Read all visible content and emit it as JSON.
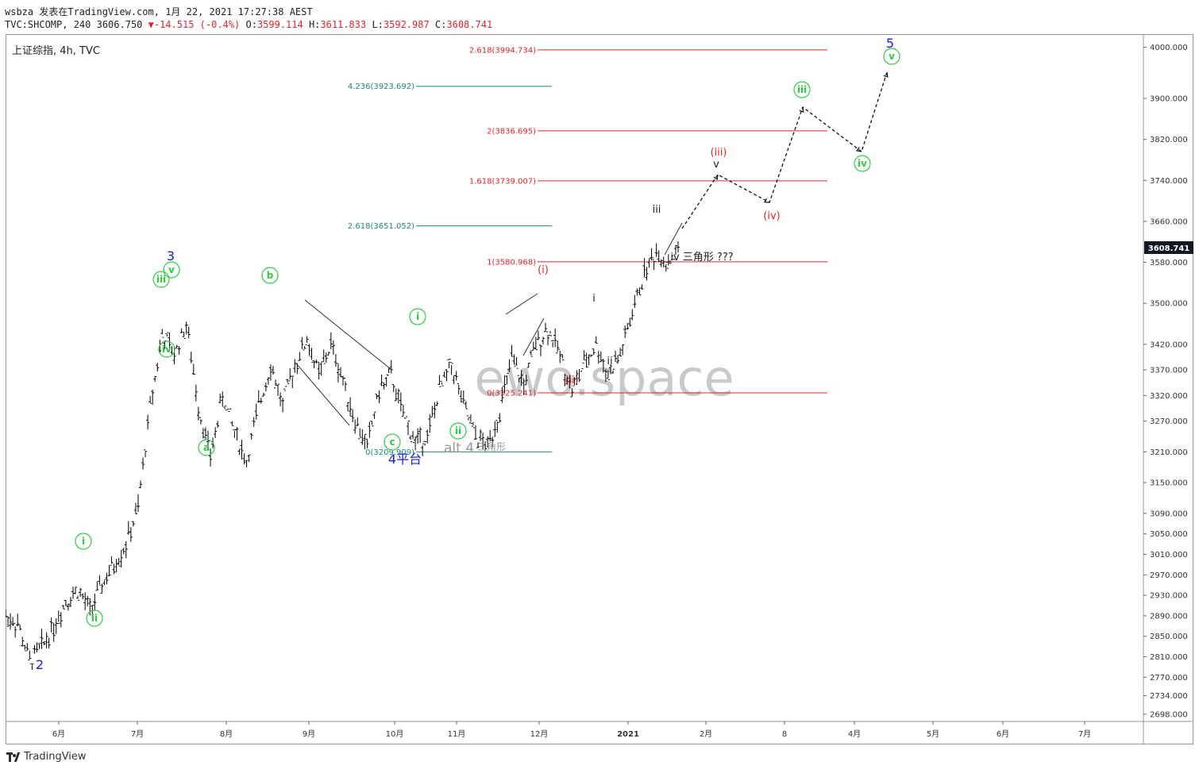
{
  "header": {
    "user": "wsbza",
    "published": "发表在TradingView.com,",
    "datetime": "1月 22, 2021 17:27:38 AEST",
    "symbol_line_prefix": "TVC:SHCOMP, 240 3606.750",
    "change": "-14.515 (-0.4%)",
    "open_label": "O:",
    "open": "3599.114",
    "high_label": "H:",
    "high": "3611.833",
    "low_label": "L:",
    "low": "3592.987",
    "close_label": "C:",
    "close": "3608.741"
  },
  "symbol_label": "上证综指, 4h, TVC",
  "watermark": "ewo.space",
  "footer": {
    "brand": "TradingView"
  },
  "colors": {
    "up": "#000000",
    "fib_red": "#e0252b",
    "fib_teal": "#1b8a7a",
    "green": "#2ecc40",
    "blue": "#1a1adb",
    "last_price_bg": "#131722"
  },
  "chart_data": {
    "type": "candlestick",
    "ylim": [
      2690,
      4010
    ],
    "y_ticks": [
      "4000.000",
      "3900.000",
      "3820.000",
      "3740.000",
      "3660.000",
      "3580.000",
      "3500.000",
      "3420.000",
      "3370.000",
      "3320.000",
      "3270.000",
      "3210.000",
      "3150.000",
      "3090.000",
      "3050.000",
      "3010.000",
      "2970.000",
      "2930.000",
      "2890.000",
      "2850.000",
      "2810.000",
      "2770.000",
      "2734.000",
      "2698.000"
    ],
    "x_ticks": [
      "6月",
      "7月",
      "8月",
      "9月",
      "10月",
      "11月",
      "12月",
      "2021",
      "2月",
      "8",
      "4月",
      "5月",
      "6月",
      "7月"
    ],
    "last_price": "3608.741",
    "price_path": [
      [
        2020.38,
        2890
      ],
      [
        2020.4,
        2875
      ],
      [
        2020.42,
        2800
      ],
      [
        2020.44,
        2830
      ],
      [
        2020.46,
        2870
      ],
      [
        2020.48,
        2920
      ],
      [
        2020.5,
        2940
      ],
      [
        2020.52,
        2900
      ],
      [
        2020.54,
        2950
      ],
      [
        2020.56,
        2990
      ],
      [
        2020.58,
        3030
      ],
      [
        2020.6,
        3100
      ],
      [
        2020.62,
        3300
      ],
      [
        2020.64,
        3440
      ],
      [
        2020.66,
        3400
      ],
      [
        2020.68,
        3460
      ],
      [
        2020.7,
        3300
      ],
      [
        2020.72,
        3200
      ],
      [
        2020.74,
        3320
      ],
      [
        2020.76,
        3250
      ],
      [
        2020.78,
        3190
      ],
      [
        2020.8,
        3300
      ],
      [
        2020.82,
        3380
      ],
      [
        2020.84,
        3300
      ],
      [
        2020.86,
        3380
      ],
      [
        2020.88,
        3430
      ],
      [
        2020.9,
        3360
      ],
      [
        2020.92,
        3420
      ],
      [
        2020.94,
        3350
      ],
      [
        2020.96,
        3270
      ],
      [
        2020.98,
        3220
      ],
      [
        2021.0,
        3330
      ],
      [
        2021.02,
        3360
      ],
      [
        2021.04,
        3280
      ],
      [
        2021.06,
        3230
      ],
      [
        2021.08,
        3240
      ],
      [
        2021.1,
        3330
      ],
      [
        2021.12,
        3380
      ],
      [
        2021.14,
        3300
      ],
      [
        2021.16,
        3240
      ],
      [
        2021.18,
        3220
      ],
      [
        2021.2,
        3290
      ],
      [
        2021.22,
        3390
      ],
      [
        2021.24,
        3340
      ],
      [
        2021.26,
        3420
      ],
      [
        2021.28,
        3450
      ],
      [
        2021.3,
        3400
      ],
      [
        2021.32,
        3330
      ],
      [
        2021.34,
        3380
      ],
      [
        2021.36,
        3420
      ],
      [
        2021.38,
        3360
      ],
      [
        2021.4,
        3400
      ],
      [
        2021.42,
        3480
      ],
      [
        2021.44,
        3560
      ],
      [
        2021.46,
        3600
      ],
      [
        2021.48,
        3580
      ],
      [
        2021.5,
        3608
      ]
    ],
    "fib_levels": [
      {
        "label": "2.618(3994.734)",
        "value": 3994.734,
        "color": "red"
      },
      {
        "label": "4.236(3923.692)",
        "value": 3923.692,
        "color": "teal"
      },
      {
        "label": "2(3836.695)",
        "value": 3836.695,
        "color": "red"
      },
      {
        "label": "1.618(3739.007)",
        "value": 3739.007,
        "color": "red"
      },
      {
        "label": "2.618(3651.052)",
        "value": 3651.052,
        "color": "teal"
      },
      {
        "label": "1(3580.968)",
        "value": 3580.968,
        "color": "red"
      },
      {
        "label": "0(3325.241)",
        "value": 3325.241,
        "color": "red"
      },
      {
        "label": "0(3209.909)",
        "value": 3209.909,
        "color": "teal"
      }
    ],
    "wave_labels": [
      {
        "text": "2",
        "color": "blue"
      },
      {
        "text": "3",
        "color": "blue"
      },
      {
        "text": "4平台",
        "color": "blue"
      },
      {
        "text": "5",
        "color": "blue"
      },
      {
        "text": "i",
        "color": "green"
      },
      {
        "text": "ii",
        "color": "green"
      },
      {
        "text": "iii",
        "color": "green"
      },
      {
        "text": "iv",
        "color": "green"
      },
      {
        "text": "v",
        "color": "green"
      },
      {
        "text": "a",
        "color": "green"
      },
      {
        "text": "b",
        "color": "green"
      },
      {
        "text": "c",
        "color": "green"
      },
      {
        "text": "i",
        "color": "green"
      },
      {
        "text": "ii",
        "color": "green"
      },
      {
        "text": "iii",
        "color": "green"
      },
      {
        "text": "iv",
        "color": "green"
      },
      {
        "text": "v",
        "color": "green"
      },
      {
        "text": "(i)",
        "color": "red"
      },
      {
        "text": "(ii)",
        "color": "red"
      },
      {
        "text": "(iii)",
        "color": "red"
      },
      {
        "text": "(iv)",
        "color": "red"
      },
      {
        "text": "i",
        "color": "black"
      },
      {
        "text": "ii",
        "color": "black"
      },
      {
        "text": "iii",
        "color": "black"
      },
      {
        "text": "v",
        "color": "black"
      },
      {
        "text": "iv 三角形 ???",
        "color": "black"
      },
      {
        "text": "alt 4",
        "color": "gray"
      },
      {
        "text": "三角形",
        "color": "gray"
      }
    ]
  }
}
